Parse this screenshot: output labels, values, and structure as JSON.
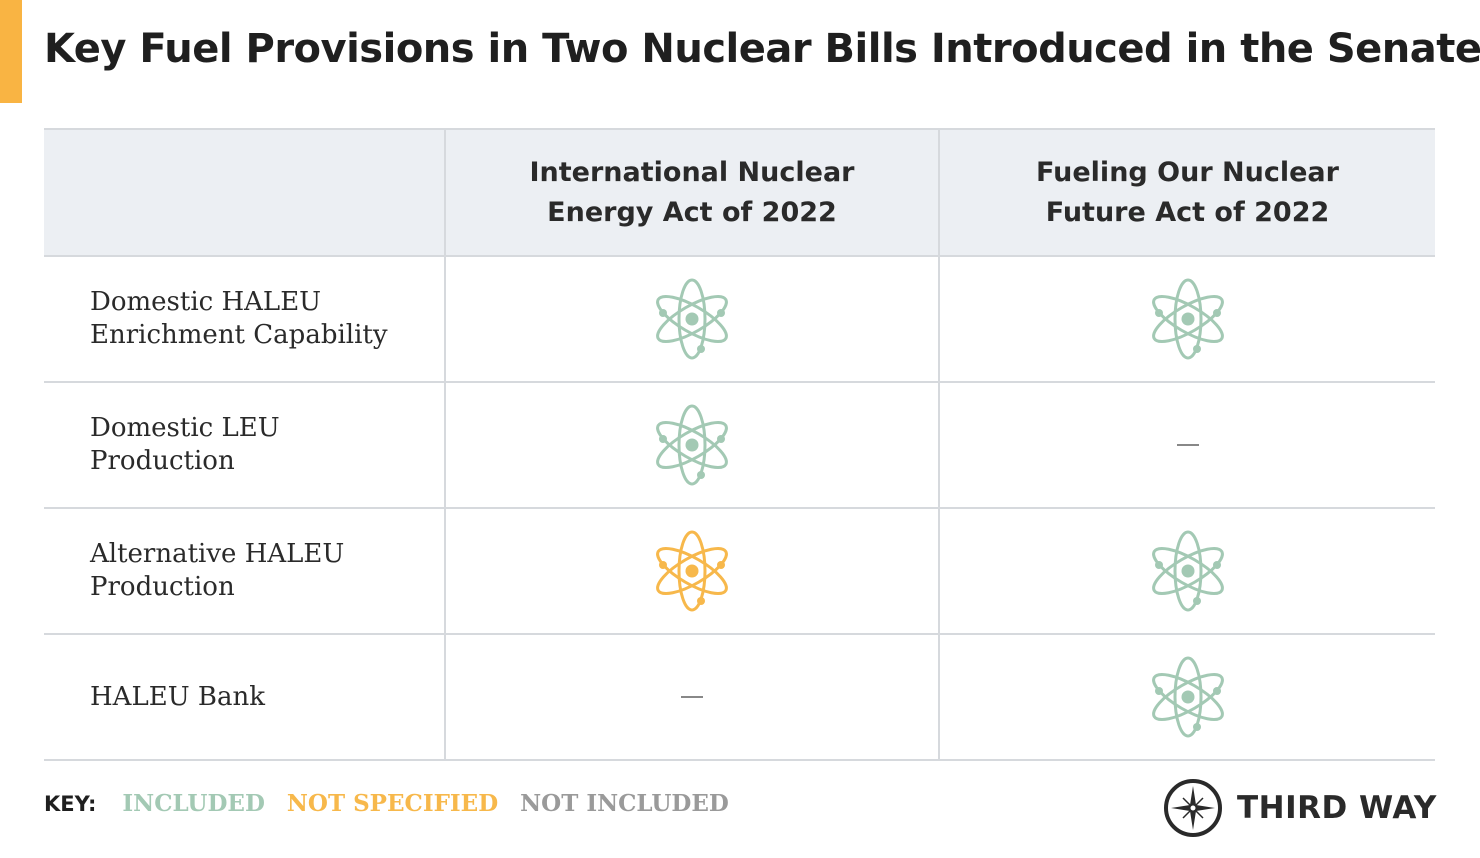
{
  "title": "Key Fuel Provisions in Two Nuclear Bills Introduced in the Senate",
  "colors": {
    "included": "#a3c9b4",
    "not_specified": "#f7b84b",
    "not_included": "#9a9a9a",
    "accent": "#f9b443"
  },
  "columns": [
    "",
    "International Nuclear Energy Act of 2022",
    "Fueling Our Nuclear Future Act of 2022"
  ],
  "rows": [
    {
      "label": "Domestic HALEU Enrichment Capability",
      "values": [
        "included",
        "included"
      ]
    },
    {
      "label": "Domestic LEU Production",
      "values": [
        "included",
        "not_included"
      ]
    },
    {
      "label": "Alternative HALEU Production",
      "values": [
        "not_specified",
        "included"
      ]
    },
    {
      "label": "HALEU Bank",
      "values": [
        "not_included",
        "included"
      ]
    }
  ],
  "key": {
    "label": "KEY:",
    "included": "INCLUDED",
    "not_specified": "NOT SPECIFIED",
    "not_included": "NOT INCLUDED"
  },
  "logo": "THIRD WAY"
}
